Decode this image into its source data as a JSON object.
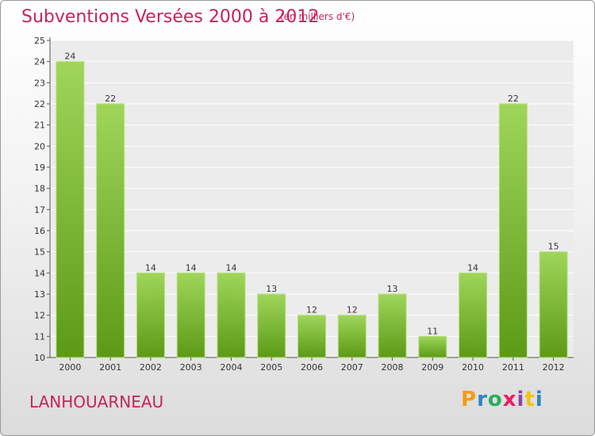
{
  "header": {
    "title": "Subventions Versées 2000 à 2012",
    "unit_note": "(en milliers d'€)"
  },
  "footer": {
    "commune": "LANHOUARNEAU"
  },
  "logo": {
    "text": "Proxiti",
    "letters": [
      "P",
      "r",
      "o",
      "x",
      "i",
      "t",
      "i"
    ],
    "colors": [
      "#f39c12",
      "#2e86c1",
      "#27ae60",
      "#e91e63",
      "#8e44ad",
      "#f1c40f",
      "#2e86c1"
    ]
  },
  "colors": {
    "bar_top": "#9fd65a",
    "bar_bottom": "#5c9a16",
    "bar_edge": "#b8e07e",
    "accent": "#c4245a"
  },
  "chart_data": {
    "type": "bar",
    "categories": [
      "2000",
      "2001",
      "2002",
      "2003",
      "2004",
      "2005",
      "2006",
      "2007",
      "2008",
      "2009",
      "2010",
      "2011",
      "2012"
    ],
    "values": [
      24,
      22,
      14,
      14,
      14,
      13,
      12,
      12,
      13,
      11,
      14,
      22,
      15
    ],
    "ylim": [
      10,
      25
    ],
    "yticks": [
      10,
      11,
      12,
      13,
      14,
      15,
      16,
      17,
      18,
      19,
      20,
      21,
      22,
      23,
      24,
      25
    ],
    "grid": true
  }
}
